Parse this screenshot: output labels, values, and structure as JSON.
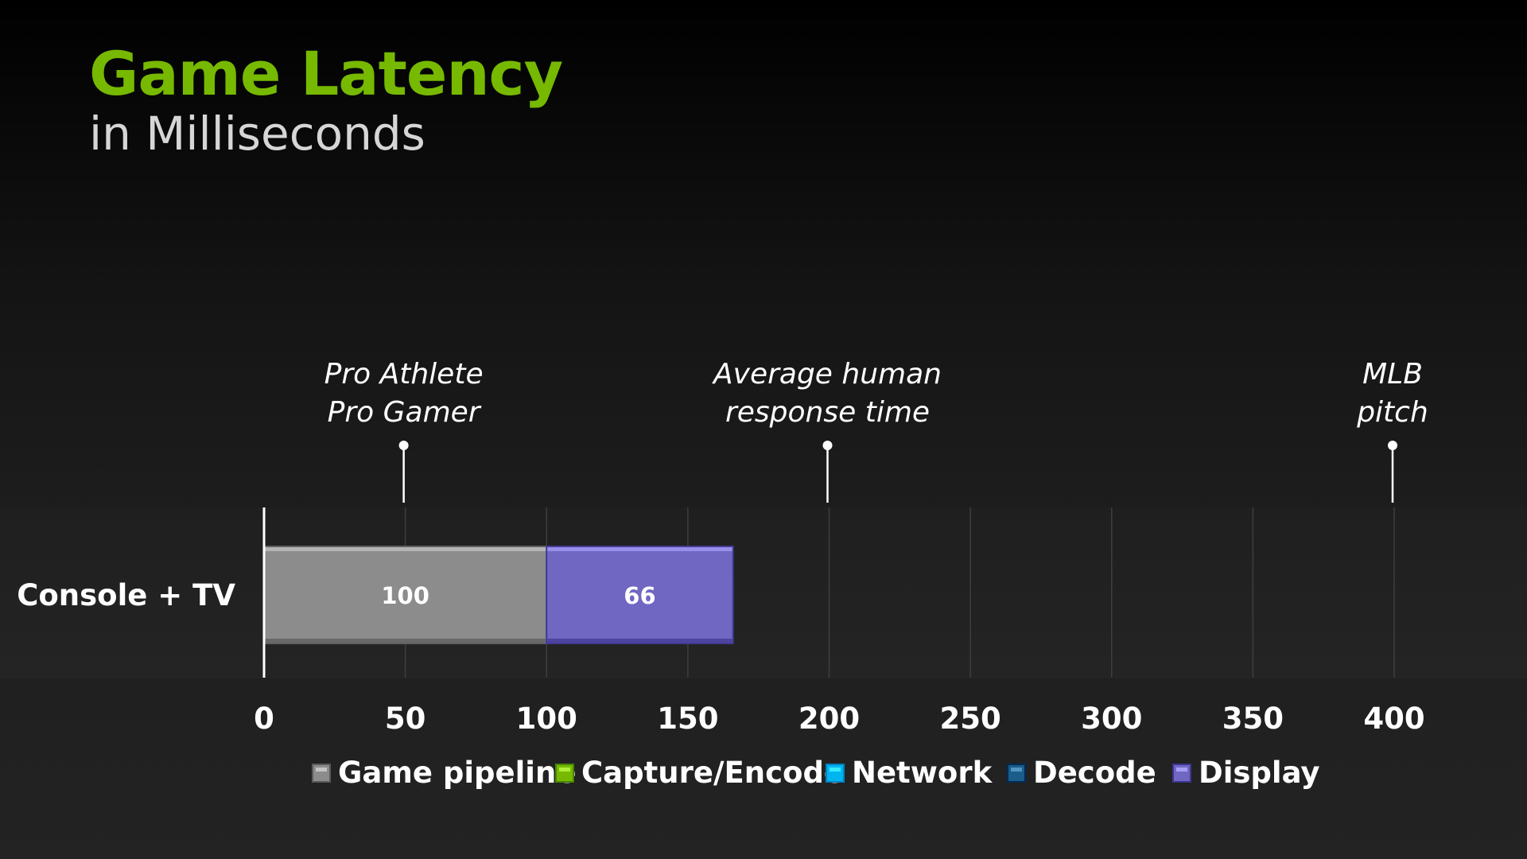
{
  "header": {
    "title": "Game Latency",
    "subtitle": "in Milliseconds"
  },
  "chart_data": {
    "type": "bar",
    "orientation": "horizontal",
    "stacked": true,
    "categories": [
      "Console + TV"
    ],
    "series": [
      {
        "name": "Game pipeline",
        "values": [
          100
        ],
        "color": "#8c8c8c"
      },
      {
        "name": "Capture/Encode",
        "values": [
          0
        ],
        "color": "#76b900"
      },
      {
        "name": "Network",
        "values": [
          0
        ],
        "color": "#00b4f0"
      },
      {
        "name": "Decode",
        "values": [
          0
        ],
        "color": "#1a5c8a"
      },
      {
        "name": "Display",
        "values": [
          66
        ],
        "color": "#6f67c2"
      }
    ],
    "data_labels": [
      {
        "series": "Game pipeline",
        "category": "Console + TV",
        "text": "100"
      },
      {
        "series": "Display",
        "category": "Console + TV",
        "text": "66"
      }
    ],
    "xlim": [
      0,
      400
    ],
    "xticks": [
      0,
      50,
      100,
      150,
      200,
      250,
      300,
      350,
      400
    ],
    "grid": true,
    "legend": "bottom",
    "reference_markers": [
      {
        "value": 50,
        "lines": [
          "Pro Athlete",
          "Pro Gamer"
        ]
      },
      {
        "value": 200,
        "lines": [
          "Average human",
          "response time"
        ]
      },
      {
        "value": 400,
        "lines": [
          "MLB",
          "pitch"
        ]
      }
    ]
  }
}
